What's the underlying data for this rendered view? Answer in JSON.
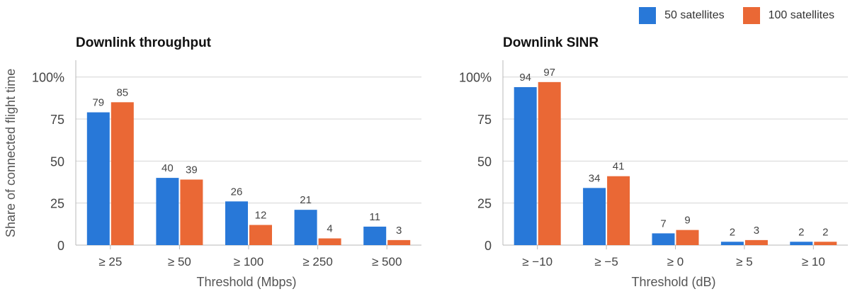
{
  "legend": {
    "position": "top-right",
    "items": [
      {
        "name": "50 satellites",
        "color": "#2878d8"
      },
      {
        "name": "100 satellites",
        "color": "#ea6835"
      }
    ]
  },
  "chart_data": [
    {
      "type": "bar",
      "title": "Downlink throughput",
      "xlabel": "Threshold (Mbps)",
      "ylabel": "Share of connected flight time",
      "categories": [
        "≥ 25",
        "≥ 50",
        "≥ 100",
        "≥ 250",
        "≥ 500"
      ],
      "series": [
        {
          "name": "50 satellites",
          "values": [
            79,
            40,
            26,
            21,
            11
          ],
          "color": "#2878d8"
        },
        {
          "name": "100 satellites",
          "values": [
            85,
            39,
            12,
            4,
            3
          ],
          "color": "#ea6835"
        }
      ],
      "ylim": [
        0,
        110
      ],
      "yticks": [
        0,
        25,
        50,
        75,
        100
      ],
      "ytick_labels": [
        "0",
        "25",
        "50",
        "75",
        "100%"
      ],
      "grid": true
    },
    {
      "type": "bar",
      "title": "Downlink SINR",
      "xlabel": "Threshold (dB)",
      "ylabel": "",
      "categories": [
        "≥ −10",
        "≥ −5",
        "≥ 0",
        "≥ 5",
        "≥ 10"
      ],
      "series": [
        {
          "name": "50 satellites",
          "values": [
            94,
            34,
            7,
            2,
            2
          ],
          "color": "#2878d8"
        },
        {
          "name": "100 satellites",
          "values": [
            97,
            41,
            9,
            3,
            2
          ],
          "color": "#ea6835"
        }
      ],
      "ylim": [
        0,
        110
      ],
      "yticks": [
        0,
        25,
        50,
        75,
        100
      ],
      "ytick_labels": [
        "0",
        "25",
        "50",
        "75",
        "100%"
      ],
      "grid": true
    }
  ]
}
